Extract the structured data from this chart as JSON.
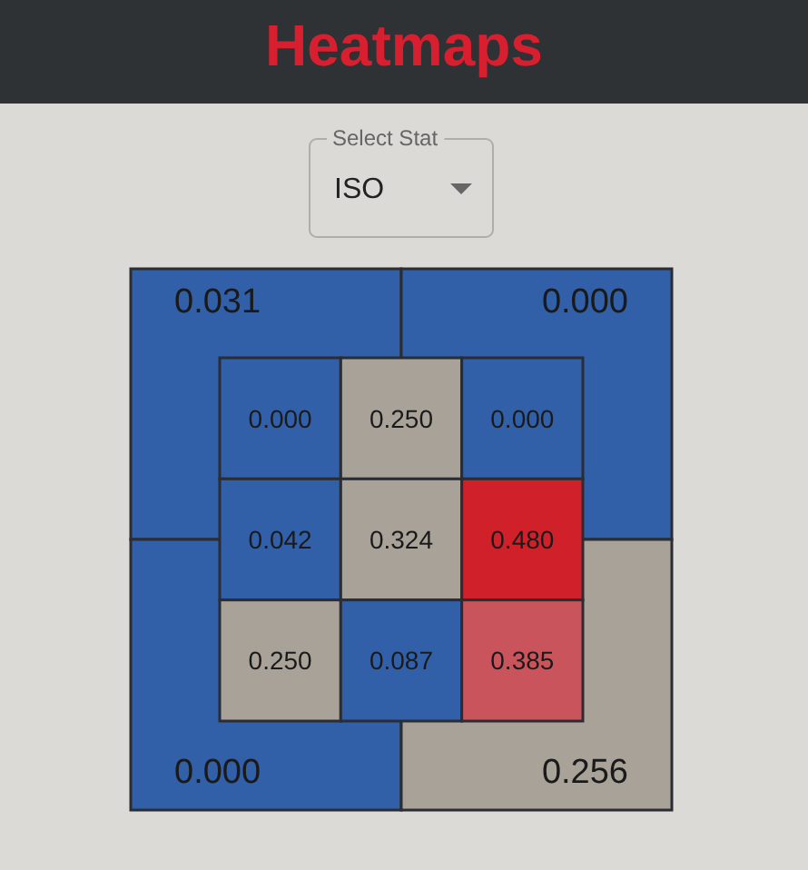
{
  "chart_data": [
    {
      "type": "heatmap",
      "title": "Heatmaps",
      "annotations": [
        "Select Stat",
        "ISO"
      ],
      "categories": [
        null,
        null,
        null
      ],
      "y_categories": [
        null,
        null,
        null
      ],
      "cells": [
        [
          0.0,
          0.25,
          0.0
        ],
        [
          0.042,
          0.324,
          0.48
        ],
        [
          0.25,
          0.087,
          0.385
        ]
      ],
      "cell_labels": [
        [
          "0.000",
          "0.250",
          "0.000"
        ],
        [
          "0.042",
          "0.324",
          "0.480"
        ],
        [
          "0.250",
          "0.087",
          "0.385"
        ]
      ]
    },
    {
      "type": "heatmap",
      "categories": [
        null,
        null
      ],
      "y_categories": [
        null,
        null
      ],
      "cells": [
        [
          0.031,
          0.0
        ],
        [
          0.0,
          0.256
        ]
      ],
      "cell_labels": [
        [
          "0.031",
          "0.000"
        ],
        [
          "0.000",
          "0.256"
        ]
      ]
    }
  ]
}
